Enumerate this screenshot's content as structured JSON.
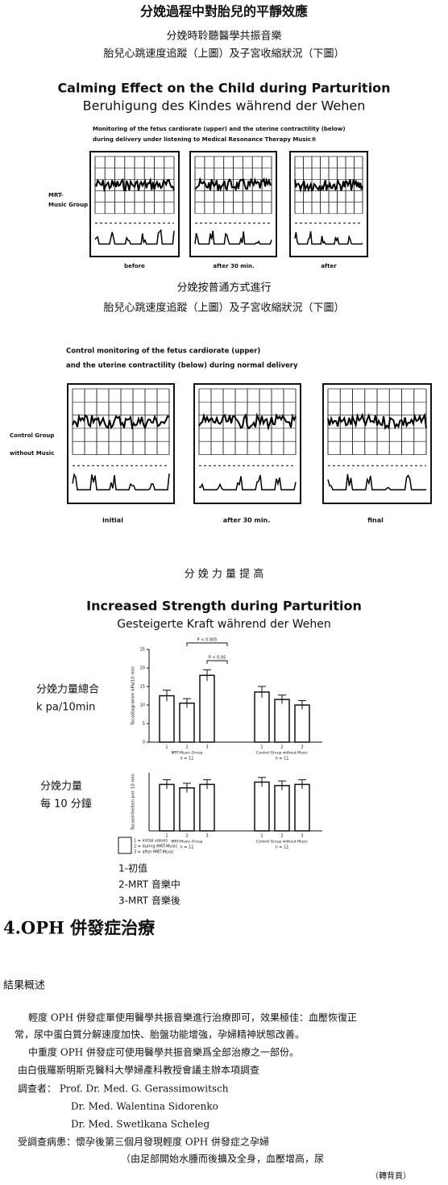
{
  "header": {
    "title": "分娩過程中對胎兒的平靜效應",
    "line1": "分娩時聆聽醫學共振音樂",
    "line2": "胎兒心跳速度追蹤（上圖）及子宮收縮狀況（下圖）"
  },
  "calming": {
    "title": "Calming Effect on the Child during Parturition",
    "subtitle": "Beruhigung des Kindes während der Wehen",
    "caption1": "Monitoring of the fetus cardiorate (upper) and the uterine contractility (below)",
    "caption2": "during delivery under listening to Medical Resonance Therapy Music®",
    "group": [
      "MRT-",
      "Music Group"
    ],
    "panels": [
      "before",
      "after 30 min.",
      "after"
    ]
  },
  "normal": {
    "line1": "分娩按普通方式進行",
    "line2": "胎兒心跳速度追蹤（上圖）及子宮收縮狀況（下圖）",
    "caption1": "Control monitoring of the fetus cardiorate (upper)",
    "caption2": "and the uterine contractility (below) during normal delivery",
    "group": [
      "Control Group",
      "without Music"
    ],
    "panels": [
      "initial",
      "after 30 min.",
      "final"
    ]
  },
  "strength": {
    "heading": "分 娩 力 量 提 高",
    "title": "Increased Strength during Parturition",
    "subtitle": "Gesteigerte Kraft während der Wehen",
    "label1": [
      "分娩力量總合",
      "k pa/10min"
    ],
    "label2": [
      "分娩力量",
      "每 10 分鐘"
    ],
    "legend": [
      "1 = initial values",
      "2 = during MRT-Music",
      "3 = after MRT-Music"
    ],
    "notes": [
      "1-初值",
      "2-MRT 音樂中",
      "3-MRT 音樂後"
    ]
  },
  "chart_data": [
    {
      "type": "bar",
      "ylabel": "Tocodiagramm kPa/10 min",
      "ylim": [
        0,
        25
      ],
      "yticks": [
        0,
        5,
        10,
        15,
        20,
        25
      ],
      "categories": [
        "MRT-Music-Group",
        "Control Group without Music"
      ],
      "group_notes": [
        "n = 11",
        "n = 11"
      ],
      "series_labels": [
        "1",
        "2",
        "3"
      ],
      "annotations": [
        "P < 0.005",
        "P < 0.05"
      ],
      "series": [
        {
          "values": [
            12.5,
            13.5
          ],
          "errors": [
            1.5,
            1.5
          ]
        },
        {
          "values": [
            10.5,
            11.5
          ],
          "errors": [
            1.2,
            1.2
          ]
        },
        {
          "values": [
            18,
            10
          ],
          "errors": [
            1.5,
            1.2
          ]
        }
      ]
    },
    {
      "type": "bar",
      "ylabel": "Tocoeinheiten per 10 min",
      "ylim": [
        0,
        5
      ],
      "categories": [
        "MRT-Music-Group",
        "Control Group without Music"
      ],
      "group_notes": [
        "n = 11",
        "n = 11"
      ],
      "series_labels": [
        "1",
        "2",
        "3"
      ],
      "series": [
        {
          "values": [
            4,
            4.2
          ],
          "errors": [
            0.4,
            0.4
          ]
        },
        {
          "values": [
            3.7,
            3.9
          ],
          "errors": [
            0.4,
            0.4
          ]
        },
        {
          "values": [
            4,
            4
          ],
          "errors": [
            0.4,
            0.4
          ]
        }
      ]
    }
  ],
  "section": {
    "title": "4.OPH 併發症治療",
    "summary": "結果概述",
    "lines": [
      "輕度 OPH 併發症單使用醫學共振音樂進行治療即可，效果極佳：血壓恢復正",
      "常，尿中蛋白質分解速度加快、胎盤功能增強，孕婦精神狀態改善。",
      "中重度 OPH 併發症可使用醫學共振音樂爲全部治療之一部份。",
      "由白俄羅斯明斯克醫科大學婦產科教授會議主辦本項調查",
      "調查者： Prof. Dr. Med. G. Gerassimowitsch",
      "Dr. Med. Walentina Sidorenko",
      "Dr. Med. Swetlkana Scheleg",
      "受調查病患：懷孕後第三個月發現輕度 OPH 併發症之孕婦",
      "（由足部開始水腫而後擴及全身，血壓增高，尿",
      "（轉背頁）"
    ]
  }
}
